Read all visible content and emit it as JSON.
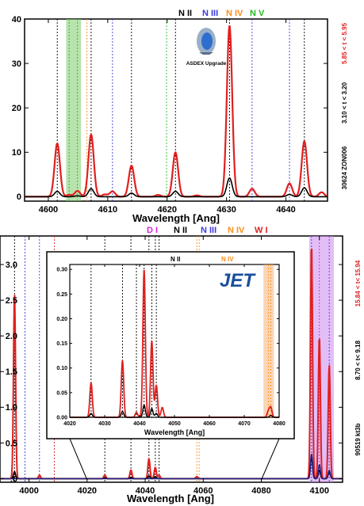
{
  "chart_data": [
    {
      "type": "line",
      "device": "ASDEX Upgrade",
      "xlabel": "Wavelength [Ang]",
      "ylabel": "",
      "xlim": [
        4596,
        4647
      ],
      "ylim": [
        -1,
        40
      ],
      "xticks": [
        4600,
        4610,
        4620,
        4630,
        4640
      ],
      "yticks": [
        0,
        10,
        20,
        30,
        40
      ],
      "legend": [
        {
          "label": "N II",
          "color": "#000000"
        },
        {
          "label": "N III",
          "color": "#3b3bdc"
        },
        {
          "label": "N IV",
          "color": "#ff8c1a"
        },
        {
          "label": "N V",
          "color": "#22bb22"
        }
      ],
      "side_labels": [
        {
          "text": "5.85 < t < 5.95",
          "color": "#e02020"
        },
        {
          "text": "3.10 < t < 3.20",
          "color": "#000000"
        },
        {
          "text": "30624 ZON006",
          "color": "#000000"
        }
      ],
      "shaded_bands": [
        {
          "x0": 4603.0,
          "x1": 4605.5,
          "color": "#7ccc6a"
        }
      ],
      "line_markers": [
        {
          "x": 4601.5,
          "color": "#000000"
        },
        {
          "x": 4603.5,
          "color": "#22bb22"
        },
        {
          "x": 4604.9,
          "color": "#22bb22"
        },
        {
          "x": 4606.5,
          "color": "#ff8c1a"
        },
        {
          "x": 4607.2,
          "color": "#000000"
        },
        {
          "x": 4610.8,
          "color": "#3b3bdc"
        },
        {
          "x": 4614.0,
          "color": "#000000"
        },
        {
          "x": 4619.9,
          "color": "#22bb22"
        },
        {
          "x": 4621.4,
          "color": "#000000"
        },
        {
          "x": 4630.5,
          "color": "#000000"
        },
        {
          "x": 4634.3,
          "color": "#3b3bdc"
        },
        {
          "x": 4640.6,
          "color": "#3b3bdc"
        },
        {
          "x": 4643.1,
          "color": "#000000"
        }
      ],
      "series": [
        {
          "name": "",
          "color": "#e02020",
          "peaks": [
            [
              4601.5,
              12
            ],
            [
              4603.5,
              0.4
            ],
            [
              4604.9,
              1.3
            ],
            [
              4607.2,
              14
            ],
            [
              4609.5,
              0.5
            ],
            [
              4610.8,
              1.2
            ],
            [
              4614.0,
              7
            ],
            [
              4618.5,
              0.4
            ],
            [
              4621.4,
              10
            ],
            [
              4625.0,
              0.3
            ],
            [
              4630.5,
              38.5
            ],
            [
              4634.3,
              1.8
            ],
            [
              4640.6,
              3
            ],
            [
              4643.1,
              12.5
            ],
            [
              4646.0,
              1
            ]
          ]
        },
        {
          "name": "",
          "color": "#000000",
          "peaks": [
            [
              4601.5,
              1.2
            ],
            [
              4604.9,
              0.2
            ],
            [
              4607.2,
              1.8
            ],
            [
              4614.0,
              0.8
            ],
            [
              4621.4,
              1.2
            ],
            [
              4630.5,
              4.2
            ],
            [
              4640.6,
              0.5
            ],
            [
              4643.1,
              2.0
            ]
          ]
        }
      ]
    },
    {
      "type": "line",
      "device": "JET",
      "xlabel": "Wavelength [Ang]",
      "ylabel": "",
      "xlim": [
        3990,
        4108
      ],
      "ylim": [
        -0.05,
        3.4
      ],
      "xticks": [
        4000,
        4020,
        4040,
        4060,
        4080,
        4100
      ],
      "yticks": [
        0.0,
        0.5,
        1.0,
        1.5,
        2.0,
        2.5,
        3.0
      ],
      "ytick_labels": [
        ".0",
        "0.5",
        "1.0",
        "1.5",
        "2.0",
        "2.5",
        "3.0"
      ],
      "legend": [
        {
          "label": "D I",
          "color": "#dd22dd"
        },
        {
          "label": "N II",
          "color": "#000000"
        },
        {
          "label": "N III",
          "color": "#3b3bdc"
        },
        {
          "label": "N IV",
          "color": "#ff8c1a"
        },
        {
          "label": "W I",
          "color": "#e02020"
        }
      ],
      "side_labels": [
        {
          "text": "15.84 < t< 15.94",
          "color": "#e02020"
        },
        {
          "text": "8.70 < t< 9.18",
          "color": "#000000"
        },
        {
          "text": "90519 kt3b",
          "color": "#000000"
        }
      ],
      "shaded_bands": [
        {
          "x0": 4096.5,
          "x1": 4105.0,
          "color": "#cc88ee"
        }
      ],
      "line_markers": [
        {
          "x": 3995.0,
          "color": "#000000"
        },
        {
          "x": 3998.6,
          "color": "#3b3bdc"
        },
        {
          "x": 4003.6,
          "color": "#3b3bdc"
        },
        {
          "x": 4008.7,
          "color": "#e02020"
        },
        {
          "x": 4026.1,
          "color": "#000000"
        },
        {
          "x": 4035.1,
          "color": "#000000"
        },
        {
          "x": 4041.3,
          "color": "#000000"
        },
        {
          "x": 4043.5,
          "color": "#000000"
        },
        {
          "x": 4044.8,
          "color": "#000000"
        },
        {
          "x": 4057.8,
          "color": "#ff8c1a"
        },
        {
          "x": 4058.6,
          "color": "#ff8c1a"
        },
        {
          "x": 4097.3,
          "color": "#3b3bdc"
        },
        {
          "x": 4100.0,
          "color": "#dd22dd"
        },
        {
          "x": 4103.4,
          "color": "#3b3bdc"
        }
      ],
      "series": [
        {
          "name": "",
          "color": "#e02020",
          "peaks": [
            [
              3995.0,
              2.6
            ],
            [
              4003.6,
              0.05
            ],
            [
              4026.1,
              0.05
            ],
            [
              4035.1,
              0.12
            ],
            [
              4041.3,
              0.28
            ],
            [
              4043.5,
              0.16
            ],
            [
              4044.8,
              0.05
            ],
            [
              4057.8,
              0.03
            ],
            [
              4097.3,
              3.3
            ],
            [
              4100.0,
              2.0
            ],
            [
              4103.4,
              1.6
            ]
          ]
        },
        {
          "name": "",
          "color": "#000000",
          "peaks": [
            [
              3995.0,
              0.1
            ],
            [
              4026.1,
              0.01
            ],
            [
              4035.1,
              0.02
            ],
            [
              4041.3,
              0.04
            ],
            [
              4043.5,
              0.03
            ],
            [
              4097.3,
              0.32
            ],
            [
              4100.0,
              0.12
            ],
            [
              4103.4,
              0.1
            ]
          ]
        },
        {
          "name": "",
          "color": "#1f1f80",
          "peaks": [
            [
              4097.3,
              0.35
            ],
            [
              4100.0,
              0.2
            ],
            [
              4103.4,
              0.12
            ]
          ]
        }
      ],
      "inset": {
        "device": "JET",
        "xlabel": "Wavelength [Ang]",
        "legend": [
          {
            "label": "N II",
            "color": "#000000"
          },
          {
            "label": "N IV",
            "color": "#ff8c1a"
          }
        ],
        "xlim": [
          4020,
          4080
        ],
        "ylim": [
          0,
          0.31
        ],
        "xticks": [
          4020,
          4030,
          4040,
          4050,
          4060,
          4070,
          4080
        ],
        "yticks": [
          0.0,
          0.05,
          0.1,
          0.15,
          0.2,
          0.25,
          0.3
        ],
        "ytick_labels": [
          "0.00",
          "0.05",
          "0.10",
          "0.15",
          "0.20",
          "0.25",
          "0.30"
        ],
        "shaded_bands": [
          {
            "x0": 4075.5,
            "x1": 4078.5,
            "color": "#f5b37a"
          }
        ],
        "line_markers": [
          {
            "x": 4026.1,
            "color": "#000000"
          },
          {
            "x": 4035.1,
            "color": "#000000"
          },
          {
            "x": 4039.1,
            "color": "#000000"
          },
          {
            "x": 4041.3,
            "color": "#000000"
          },
          {
            "x": 4043.5,
            "color": "#000000"
          },
          {
            "x": 4044.8,
            "color": "#000000"
          },
          {
            "x": 4076.9,
            "color": "#ff8c1a"
          },
          {
            "x": 4077.6,
            "color": "#ff8c1a"
          }
        ],
        "series": [
          {
            "name": "",
            "color": "#e02020",
            "peaks": [
              [
                4026.1,
                0.07
              ],
              [
                4035.1,
                0.115
              ],
              [
                4039.1,
                0.01
              ],
              [
                4041.3,
                0.3
              ],
              [
                4043.5,
                0.155
              ],
              [
                4044.8,
                0.065
              ],
              [
                4046.5,
                0.02
              ],
              [
                4076.9,
                0.012
              ],
              [
                4077.6,
                0.02
              ]
            ]
          },
          {
            "name": "",
            "color": "#000000",
            "peaks": [
              [
                4026.1,
                0.008
              ],
              [
                4035.1,
                0.012
              ],
              [
                4041.3,
                0.025
              ],
              [
                4043.5,
                0.018
              ],
              [
                4044.8,
                0.008
              ],
              [
                4077.6,
                0.004
              ]
            ]
          }
        ]
      }
    }
  ]
}
